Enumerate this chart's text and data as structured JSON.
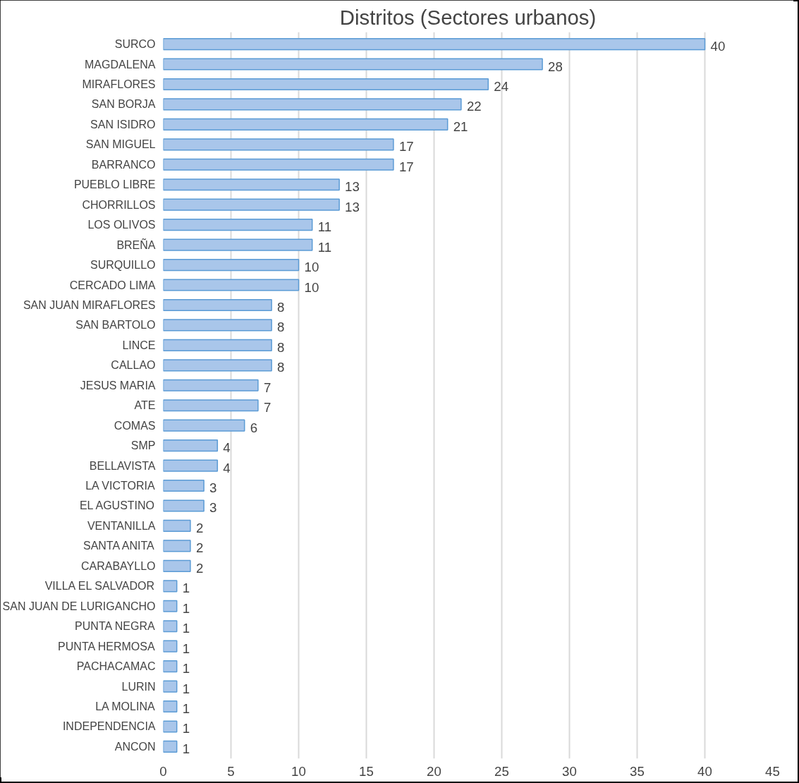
{
  "chart_data": {
    "type": "bar",
    "orientation": "horizontal",
    "title": "Distritos (Sectores urbanos)",
    "categories": [
      "SURCO",
      "MAGDALENA",
      "MIRAFLORES",
      "SAN BORJA",
      "SAN ISIDRO",
      "SAN MIGUEL",
      "BARRANCO",
      "PUEBLO LIBRE",
      "CHORRILLOS",
      "LOS OLIVOS",
      "BREÑA",
      "SURQUILLO",
      "CERCADO LIMA",
      "SAN JUAN MIRAFLORES",
      "SAN BARTOLO",
      "LINCE",
      "CALLAO",
      "JESUS MARIA",
      "ATE",
      "COMAS",
      "SMP",
      "BELLAVISTA",
      "LA VICTORIA",
      "EL AGUSTINO",
      "VENTANILLA",
      "SANTA ANITA",
      "CARABAYLLO",
      "VILLA EL SALVADOR",
      "SAN JUAN DE LURIGANCHO",
      "PUNTA NEGRA",
      "PUNTA HERMOSA",
      "PACHACAMAC",
      "LURIN",
      "LA MOLINA",
      "INDEPENDENCIA",
      "ANCON"
    ],
    "values": [
      40,
      28,
      24,
      22,
      21,
      17,
      17,
      13,
      13,
      11,
      11,
      10,
      10,
      8,
      8,
      8,
      8,
      7,
      7,
      6,
      4,
      4,
      3,
      3,
      2,
      2,
      2,
      1,
      1,
      1,
      1,
      1,
      1,
      1,
      1,
      1
    ],
    "color": "#a9c6ea",
    "xlim": [
      0,
      45
    ],
    "xticks": [
      0,
      5,
      10,
      15,
      20,
      25,
      30,
      35,
      40,
      45
    ],
    "grid": "x",
    "data_labels": true
  }
}
